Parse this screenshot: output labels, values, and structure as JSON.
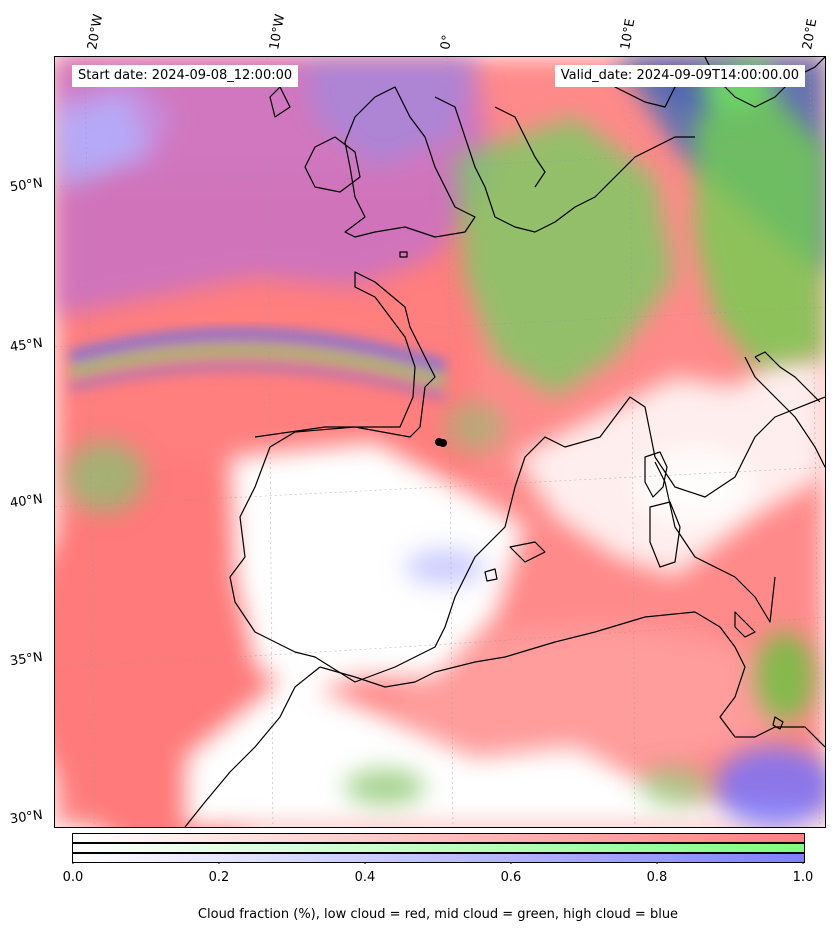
{
  "map": {
    "start_label": "Start date: 2024-09-08_12:00:00",
    "valid_label": "Valid_date: 2024-09-09T14:00:00.00",
    "longitude_labels": [
      "20°W",
      "10°W",
      "0°",
      "10°E",
      "20°E"
    ],
    "latitude_labels": [
      "50°N",
      "45°N",
      "40°N",
      "35°N",
      "30°N"
    ],
    "colors": {
      "low_cloud": "#ff8080",
      "mid_cloud": "#80ff80",
      "high_cloud": "#8080ff",
      "coastline": "#000000"
    }
  },
  "colorbar": {
    "tick_labels": [
      "0.0",
      "0.2",
      "0.4",
      "0.6",
      "0.8",
      "1.0"
    ],
    "caption": "Cloud fraction (%), low cloud = red, mid cloud = green, high cloud = blue"
  }
}
